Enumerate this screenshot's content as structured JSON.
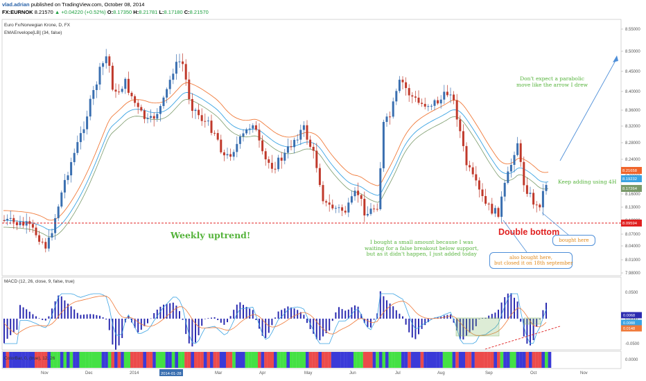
{
  "header": {
    "author": "vlad.adrian",
    "published": "published on TradingView.com, October 08, 2014",
    "symbol": "FX:EURNOK",
    "last": "8.21570",
    "change": "▲ +0.04220 (+0.52%)",
    "o_label": "O:",
    "o": "8.17350",
    "h_label": "H:",
    "h": "8.21781",
    "l_label": "L:",
    "l": "8.17180",
    "c_label": "C:",
    "c": "8.21570"
  },
  "chart": {
    "title": "Euro Fx/Norwegian Krone, D, FX",
    "indicator": "EMAEnvelope[LB] (34, false)",
    "price_ticks": [
      "8.55000",
      "8.50000",
      "8.45000",
      "8.40000",
      "8.36000",
      "8.32000",
      "8.28000",
      "8.24000",
      "8.20000",
      "8.16000",
      "8.13000",
      "8.10000",
      "8.07000",
      "8.04000",
      "8.01000",
      "7.98000"
    ],
    "price_tags": [
      {
        "label": "8.21658",
        "color": "#f0652b"
      },
      {
        "label": "8.19232",
        "color": "#3aa3e3"
      },
      {
        "label": "8.17264",
        "color": "#7a9a6a"
      },
      {
        "label": "8.09594",
        "color": "#e02020"
      }
    ],
    "x_labels": [
      "Nov",
      "Dec",
      "2014",
      "Feb",
      "Mar",
      "Apr",
      "May",
      "Jun",
      "Jul",
      "Aug",
      "Sep",
      "Oct",
      "Nov"
    ],
    "cursor_date": "2014-01-28",
    "colors": {
      "up": "#3a6fb0",
      "down": "#c0392b",
      "ema_orange": "#f07a3a",
      "ema_blue": "#3aa3e3",
      "ema_green": "#7a9a6a",
      "support": "#e02020"
    }
  },
  "annotations": {
    "weekly_uptrend": "Weekly uptrend!",
    "double_bottom": "Double bottom",
    "parabolic_1": "Don't expect a parabolic",
    "parabolic_2": "move like the arrow I drew",
    "keep_adding": "Keep adding using 4H",
    "bought_small_1": "I bought a small amount because I was",
    "bought_small_2": "waiting for a false breakout below support,",
    "bought_small_3": "but as it didn't happen, I just added today",
    "bought_here": "bought here",
    "also_bought_1": "also bought here,",
    "also_bought_2": "but closed it on 18th september"
  },
  "macd": {
    "label": "MACD (12, 26, close, 9, false, true)",
    "ticks": [
      "0.0500",
      "0.0000",
      "-0.0500"
    ],
    "tags": [
      {
        "label": "0.0068",
        "color": "#2b2bb0"
      },
      {
        "label": "0.0088",
        "color": "#3aa3e3"
      },
      {
        "label": "0.0148",
        "color": "#f07a3a"
      }
    ]
  },
  "bottom": {
    "label": "ColorBar, 0, (true), 12, 26",
    "tick": "0.0000"
  }
}
